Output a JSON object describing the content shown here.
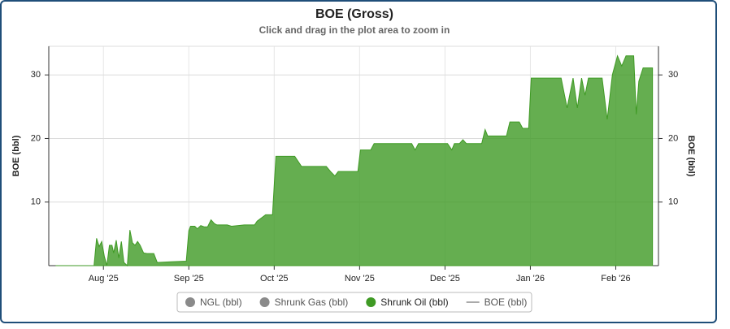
{
  "chart_data": {
    "type": "area",
    "title": "BOE (Gross)",
    "subtitle": "Click and drag in the plot area to zoom in",
    "y_label": "BOE (bbl)",
    "y2_label": "BOE (bbl)",
    "xlim": [
      0.36,
      7.5
    ],
    "xticks": [
      {
        "value": 1,
        "label": "Aug '25"
      },
      {
        "value": 2,
        "label": "Sep '25"
      },
      {
        "value": 3,
        "label": "Oct '25"
      },
      {
        "value": 4,
        "label": "Nov '25"
      },
      {
        "value": 5,
        "label": "Dec '25"
      },
      {
        "value": 6,
        "label": "Jan '26"
      },
      {
        "value": 7,
        "label": "Feb '26"
      }
    ],
    "ylim": [
      0,
      34.5
    ],
    "yticks": [
      10,
      20,
      30
    ],
    "grid": true,
    "x": [
      0.44,
      0.89,
      0.92,
      0.95,
      0.98,
      1.01,
      1.04,
      1.07,
      1.1,
      1.12,
      1.15,
      1.18,
      1.21,
      1.24,
      1.28,
      1.31,
      1.34,
      1.37,
      1.4,
      1.43,
      1.47,
      1.51,
      1.59,
      1.63,
      1.79,
      1.97,
      2.0,
      2.02,
      2.07,
      2.1,
      2.14,
      2.18,
      2.22,
      2.26,
      2.3,
      2.33,
      2.45,
      2.5,
      2.65,
      2.77,
      2.8,
      2.9,
      2.98,
      3.02,
      3.24,
      3.32,
      3.61,
      3.66,
      3.71,
      3.75,
      3.98,
      4.01,
      4.13,
      4.17,
      4.61,
      4.65,
      4.69,
      5.03,
      5.08,
      5.11,
      5.17,
      5.21,
      5.25,
      5.43,
      5.47,
      5.5,
      5.72,
      5.76,
      5.87,
      5.91,
      5.98,
      6.01,
      6.36,
      6.43,
      6.5,
      6.55,
      6.6,
      6.64,
      6.68,
      6.84,
      6.9,
      6.96,
      7.02,
      7.07,
      7.12,
      7.21,
      7.24,
      7.27,
      7.32,
      7.43
    ],
    "series": [
      {
        "name": "NGL (bbl)",
        "color": "#8a8a8a",
        "marker": "circle",
        "visible": false
      },
      {
        "name": "Shrunk Gas (bbl)",
        "color": "#8a8a8a",
        "marker": "circle",
        "visible": false
      },
      {
        "name": "Shrunk Oil (bbl)",
        "color": "#3f9a24",
        "marker": "circle",
        "visible": true,
        "values": [
          0,
          0,
          4.3,
          3,
          3.8,
          1.5,
          0,
          3.2,
          3.2,
          2,
          4,
          1.2,
          3.8,
          0.5,
          0,
          5.6,
          3.6,
          3.2,
          3.8,
          3.2,
          2,
          1.9,
          1.9,
          0.5,
          0.6,
          0.7,
          5.5,
          6.2,
          6.2,
          5.8,
          6.3,
          6.1,
          6.1,
          7.2,
          6.6,
          6.4,
          6.4,
          6.2,
          6.4,
          6.4,
          7,
          8,
          8,
          17.2,
          17.2,
          15.6,
          15.6,
          14.8,
          14.1,
          14.8,
          14.8,
          18.2,
          18.2,
          19.2,
          19.2,
          18.2,
          19.2,
          19.2,
          18.2,
          19.2,
          19.2,
          19.8,
          19.2,
          19.2,
          21.4,
          20.4,
          20.4,
          22.6,
          22.6,
          21.6,
          21.6,
          29.5,
          29.5,
          24.8,
          29.5,
          24.8,
          29.5,
          26.8,
          29.5,
          29.5,
          23,
          30,
          33,
          31.4,
          33,
          33,
          23.8,
          29,
          31.1,
          31.1
        ]
      },
      {
        "name": "BOE (bbl)",
        "color": "#aaaaaa",
        "marker": "line",
        "visible": false
      }
    ]
  }
}
